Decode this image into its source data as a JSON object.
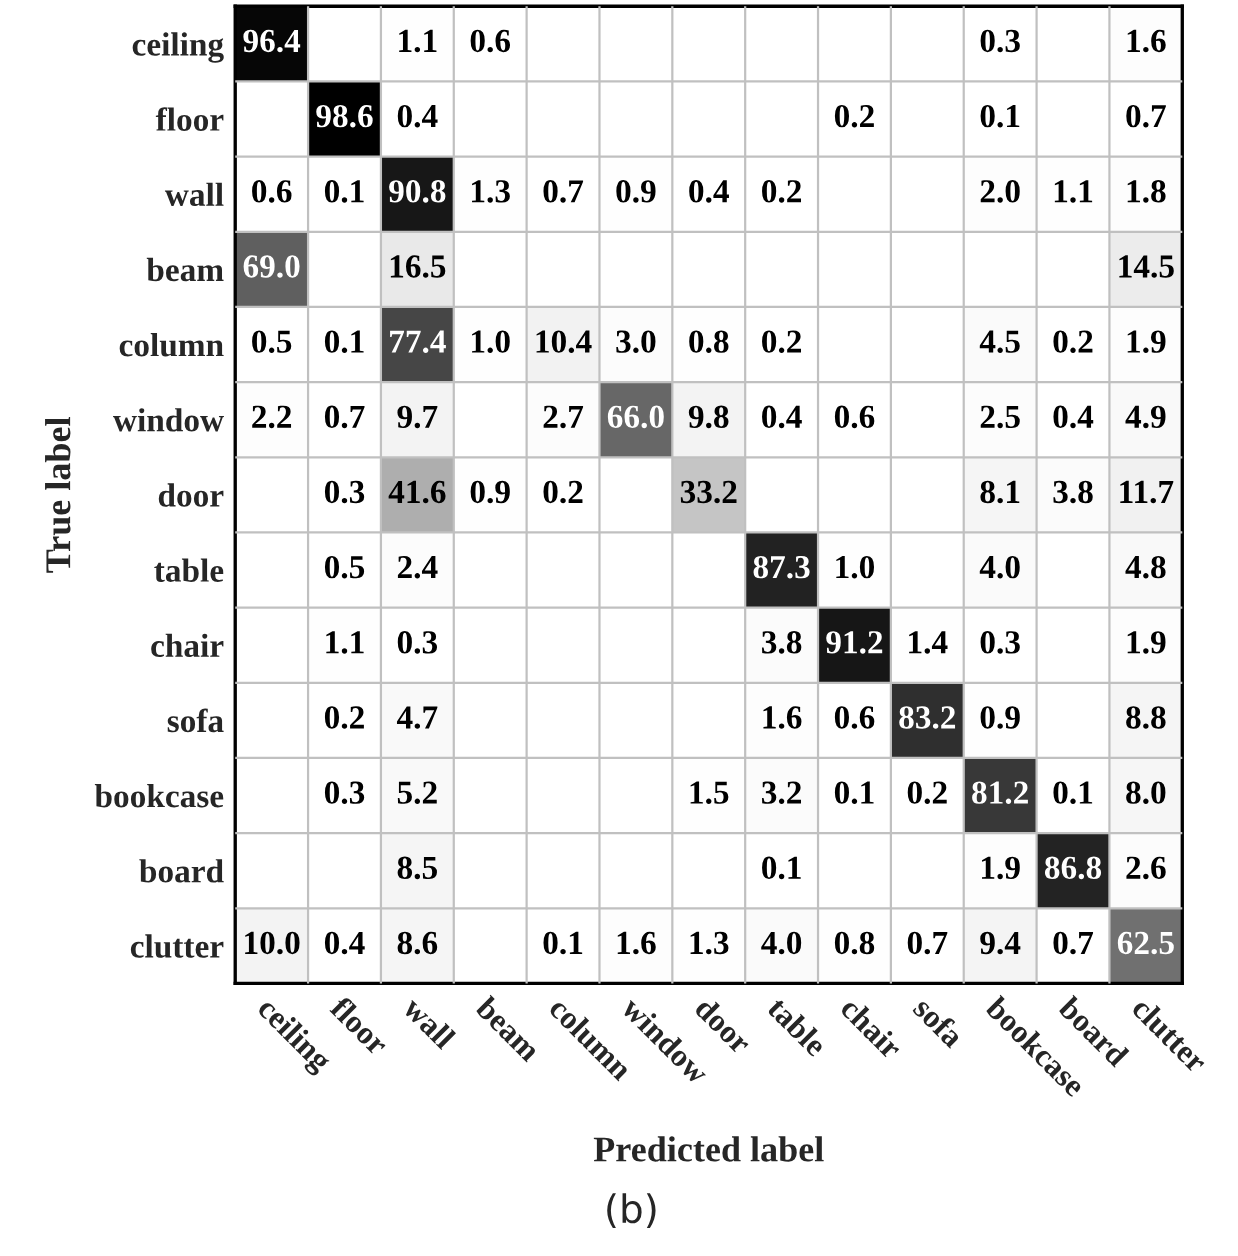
{
  "chart_data": {
    "type": "heatmap",
    "xlabel": "Predicted label",
    "ylabel": "True label",
    "annotations": [
      "(b)"
    ],
    "categories": [
      "ceiling",
      "floor",
      "wall",
      "beam",
      "column",
      "window",
      "door",
      "table",
      "chair",
      "sofa",
      "bookcase",
      "board",
      "clutter"
    ],
    "y_categories": [
      "ceiling",
      "floor",
      "wall",
      "beam",
      "column",
      "window",
      "door",
      "table",
      "chair",
      "sofa",
      "bookcase",
      "board",
      "clutter"
    ],
    "cells": [
      [
        96.4,
        null,
        1.1,
        0.6,
        null,
        null,
        null,
        null,
        null,
        null,
        0.3,
        null,
        1.6
      ],
      [
        null,
        98.6,
        0.4,
        null,
        null,
        null,
        null,
        null,
        0.2,
        null,
        0.1,
        null,
        0.7
      ],
      [
        0.6,
        0.1,
        90.8,
        1.3,
        0.7,
        0.9,
        0.4,
        0.2,
        null,
        null,
        2.0,
        1.1,
        1.8
      ],
      [
        69.0,
        null,
        16.5,
        null,
        null,
        null,
        null,
        null,
        null,
        null,
        null,
        null,
        14.5
      ],
      [
        0.5,
        0.1,
        77.4,
        1.0,
        10.4,
        3.0,
        0.8,
        0.2,
        null,
        null,
        4.5,
        0.2,
        1.9
      ],
      [
        2.2,
        0.7,
        9.7,
        null,
        2.7,
        66.0,
        9.8,
        0.4,
        0.6,
        null,
        2.5,
        0.4,
        4.9
      ],
      [
        null,
        0.3,
        41.6,
        0.9,
        0.2,
        null,
        33.2,
        null,
        null,
        null,
        8.1,
        3.8,
        11.7
      ],
      [
        null,
        0.5,
        2.4,
        null,
        null,
        null,
        null,
        87.3,
        1.0,
        null,
        4.0,
        null,
        4.8
      ],
      [
        null,
        1.1,
        0.3,
        null,
        null,
        null,
        null,
        3.8,
        91.2,
        1.4,
        0.3,
        null,
        1.9
      ],
      [
        null,
        0.2,
        4.7,
        null,
        null,
        null,
        null,
        1.6,
        0.6,
        83.2,
        0.9,
        null,
        8.8
      ],
      [
        null,
        0.3,
        5.2,
        null,
        null,
        null,
        1.5,
        3.2,
        0.1,
        0.2,
        81.2,
        0.1,
        8.0
      ],
      [
        null,
        null,
        8.5,
        null,
        null,
        null,
        null,
        0.1,
        null,
        null,
        1.9,
        86.8,
        2.6
      ],
      [
        10.0,
        0.4,
        8.6,
        null,
        0.1,
        1.6,
        1.3,
        4.0,
        0.8,
        0.7,
        9.4,
        0.7,
        62.5
      ]
    ],
    "cell_labels": [
      [
        "96.4",
        null,
        "1.1",
        "0.6",
        null,
        null,
        null,
        null,
        null,
        null,
        "0.3",
        null,
        "1.6"
      ],
      [
        null,
        "98.6",
        "0.4",
        null,
        null,
        null,
        null,
        null,
        "0.2",
        null,
        "0.1",
        null,
        "0.7"
      ],
      [
        "0.6",
        "0.1",
        "90.8",
        "1.3",
        "0.7",
        "0.9",
        "0.4",
        "0.2",
        null,
        null,
        "2.0",
        "1.1",
        "1.8"
      ],
      [
        "69.0",
        null,
        "16.5",
        null,
        null,
        null,
        null,
        null,
        null,
        null,
        null,
        null,
        "14.5"
      ],
      [
        "0.5",
        "0.1",
        "77.4",
        "1.0",
        "10.4",
        "3.0",
        "0.8",
        "0.2",
        null,
        null,
        "4.5",
        "0.2",
        "1.9"
      ],
      [
        "2.2",
        "0.7",
        "9.7",
        null,
        "2.7",
        "66.0",
        "9.8",
        "0.4",
        "0.6",
        null,
        "2.5",
        "0.4",
        "4.9"
      ],
      [
        null,
        "0.3",
        "41.6",
        "0.9",
        "0.2",
        null,
        "33.2",
        null,
        null,
        null,
        "8.1",
        "3.8",
        "11.7"
      ],
      [
        null,
        "0.5",
        "2.4",
        null,
        null,
        null,
        null,
        "87.3",
        "1.0",
        null,
        "4.0",
        null,
        "4.8"
      ],
      [
        null,
        "1.1",
        "0.3",
        null,
        null,
        null,
        null,
        "3.8",
        "91.2",
        "1.4",
        "0.3",
        null,
        "1.9"
      ],
      [
        null,
        "0.2",
        "4.7",
        null,
        null,
        null,
        null,
        "1.6",
        "0.6",
        "83.2",
        "0.9",
        null,
        "8.8"
      ],
      [
        null,
        "0.3",
        "5.2",
        null,
        null,
        null,
        "1.5",
        "3.2",
        "0.1",
        "0.2",
        "81.2",
        "0.1",
        "8.0"
      ],
      [
        null,
        null,
        "8.5",
        null,
        null,
        null,
        null,
        "0.1",
        null,
        null,
        "1.9",
        "86.8",
        "2.6"
      ],
      [
        "10.0",
        "0.4",
        "8.6",
        null,
        "0.1",
        "1.6",
        "1.3",
        "4.0",
        "0.8",
        "0.7",
        "9.4",
        "0.7",
        "62.5"
      ]
    ],
    "data_labels": true,
    "grid": true
  }
}
